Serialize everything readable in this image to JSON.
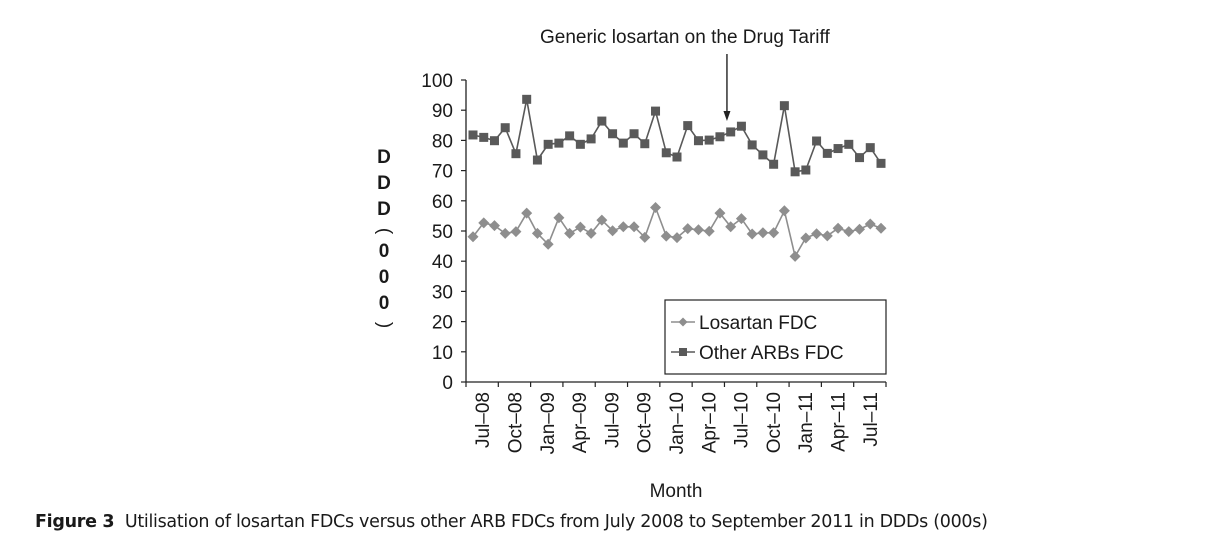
{
  "chart_data": {
    "type": "line",
    "title": "",
    "annotation": "Generic losartan on the Drug Tariff",
    "annotation_month": "Jun-10",
    "xlabel": "Month",
    "ylabel": "DDD (000)",
    "ylabel_chars": [
      "D",
      "D",
      "D",
      "(",
      "0",
      "0",
      "0",
      ")"
    ],
    "ylim": [
      0,
      100
    ],
    "yticks": [
      0,
      10,
      20,
      30,
      40,
      50,
      60,
      70,
      80,
      90,
      100
    ],
    "x": [
      "Jul-08",
      "Aug-08",
      "Sep-08",
      "Oct-08",
      "Nov-08",
      "Dec-08",
      "Jan-09",
      "Feb-09",
      "Mar-09",
      "Apr-09",
      "May-09",
      "Jun-09",
      "Jul-09",
      "Aug-09",
      "Sep-09",
      "Oct-09",
      "Nov-09",
      "Dec-09",
      "Jan-10",
      "Feb-10",
      "Mar-10",
      "Apr-10",
      "May-10",
      "Jun-10",
      "Jul-10",
      "Aug-10",
      "Sep-10",
      "Oct-10",
      "Nov-10",
      "Dec-10",
      "Jan-11",
      "Feb-11",
      "Mar-11",
      "Apr-11",
      "May-11",
      "Jun-11",
      "Jul-11",
      "Aug-11",
      "Sep-11"
    ],
    "xtick_labels": [
      "Jul–08",
      "Oct–08",
      "Jan–09",
      "Apr–09",
      "Jul–09",
      "Oct–09",
      "Jan–10",
      "Apr–10",
      "Jul–10",
      "Oct–10",
      "Jan–11",
      "Apr–11",
      "Jul–11"
    ],
    "legend_position": "bottom-right",
    "grid": false,
    "series": [
      {
        "name": "Losartan FDC",
        "marker": "diamond",
        "color": "#8e8e8e",
        "values": [
          48.1,
          52.7,
          51.8,
          49.2,
          49.8,
          55.9,
          49.2,
          45.6,
          54.4,
          49.2,
          51.3,
          49.2,
          53.6,
          50.1,
          51.4,
          51.4,
          47.9,
          57.8,
          48.3,
          47.8,
          50.8,
          50.4,
          49.9,
          55.9,
          51.4,
          54.1,
          49.0,
          49.4,
          49.4,
          56.7,
          41.6,
          47.7,
          49.1,
          48.4,
          50.9,
          49.8,
          50.6,
          52.3,
          50.9
        ]
      },
      {
        "name": "Other ARBs FDC",
        "marker": "square",
        "color": "#595959",
        "values": [
          81.8,
          81.0,
          79.9,
          84.2,
          75.6,
          93.6,
          73.5,
          78.7,
          79.1,
          81.5,
          78.7,
          80.5,
          86.4,
          82.2,
          79.1,
          82.2,
          78.9,
          89.7,
          75.9,
          74.5,
          84.9,
          79.9,
          80.1,
          81.2,
          82.8,
          84.7,
          78.5,
          75.2,
          72.1,
          91.5,
          69.6,
          70.2,
          79.8,
          75.7,
          77.3,
          78.7,
          74.3,
          77.6,
          72.4
        ]
      }
    ]
  },
  "caption": {
    "label": "Figure 3",
    "text": "Utilisation of losartan FDCs versus other ARB FDCs from July 2008 to September 2011 in DDDs (000s)"
  }
}
